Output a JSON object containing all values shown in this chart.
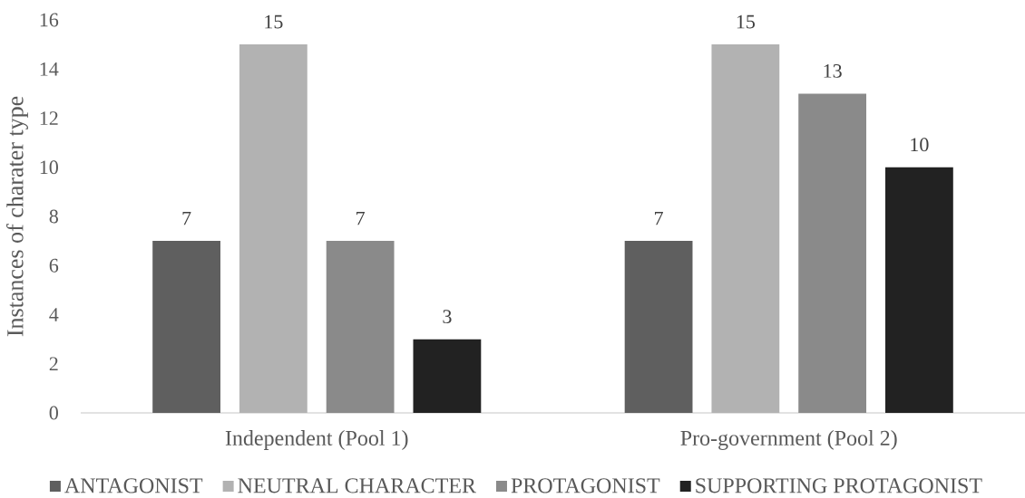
{
  "chart_data": {
    "type": "bar",
    "ylabel": "Instances of charater type",
    "categories": [
      "Independent (Pool 1)",
      "Pro-government (Pool 2)"
    ],
    "series": [
      {
        "name": "ANTAGONIST",
        "color": "#5f5f5f",
        "values": [
          7,
          7
        ]
      },
      {
        "name": "NEUTRAL CHARACTER",
        "color": "#b2b2b2",
        "values": [
          15,
          15
        ]
      },
      {
        "name": "PROTAGONIST",
        "color": "#8a8a8a",
        "values": [
          7,
          13
        ]
      },
      {
        "name": "SUPPORTING PROTAGONIST",
        "color": "#222222",
        "values": [
          3,
          10
        ]
      }
    ],
    "ylim": [
      0,
      16
    ],
    "yticks": [
      0,
      2,
      4,
      6,
      8,
      10,
      12,
      14,
      16
    ],
    "data_labels": true,
    "legend": "bottom"
  }
}
